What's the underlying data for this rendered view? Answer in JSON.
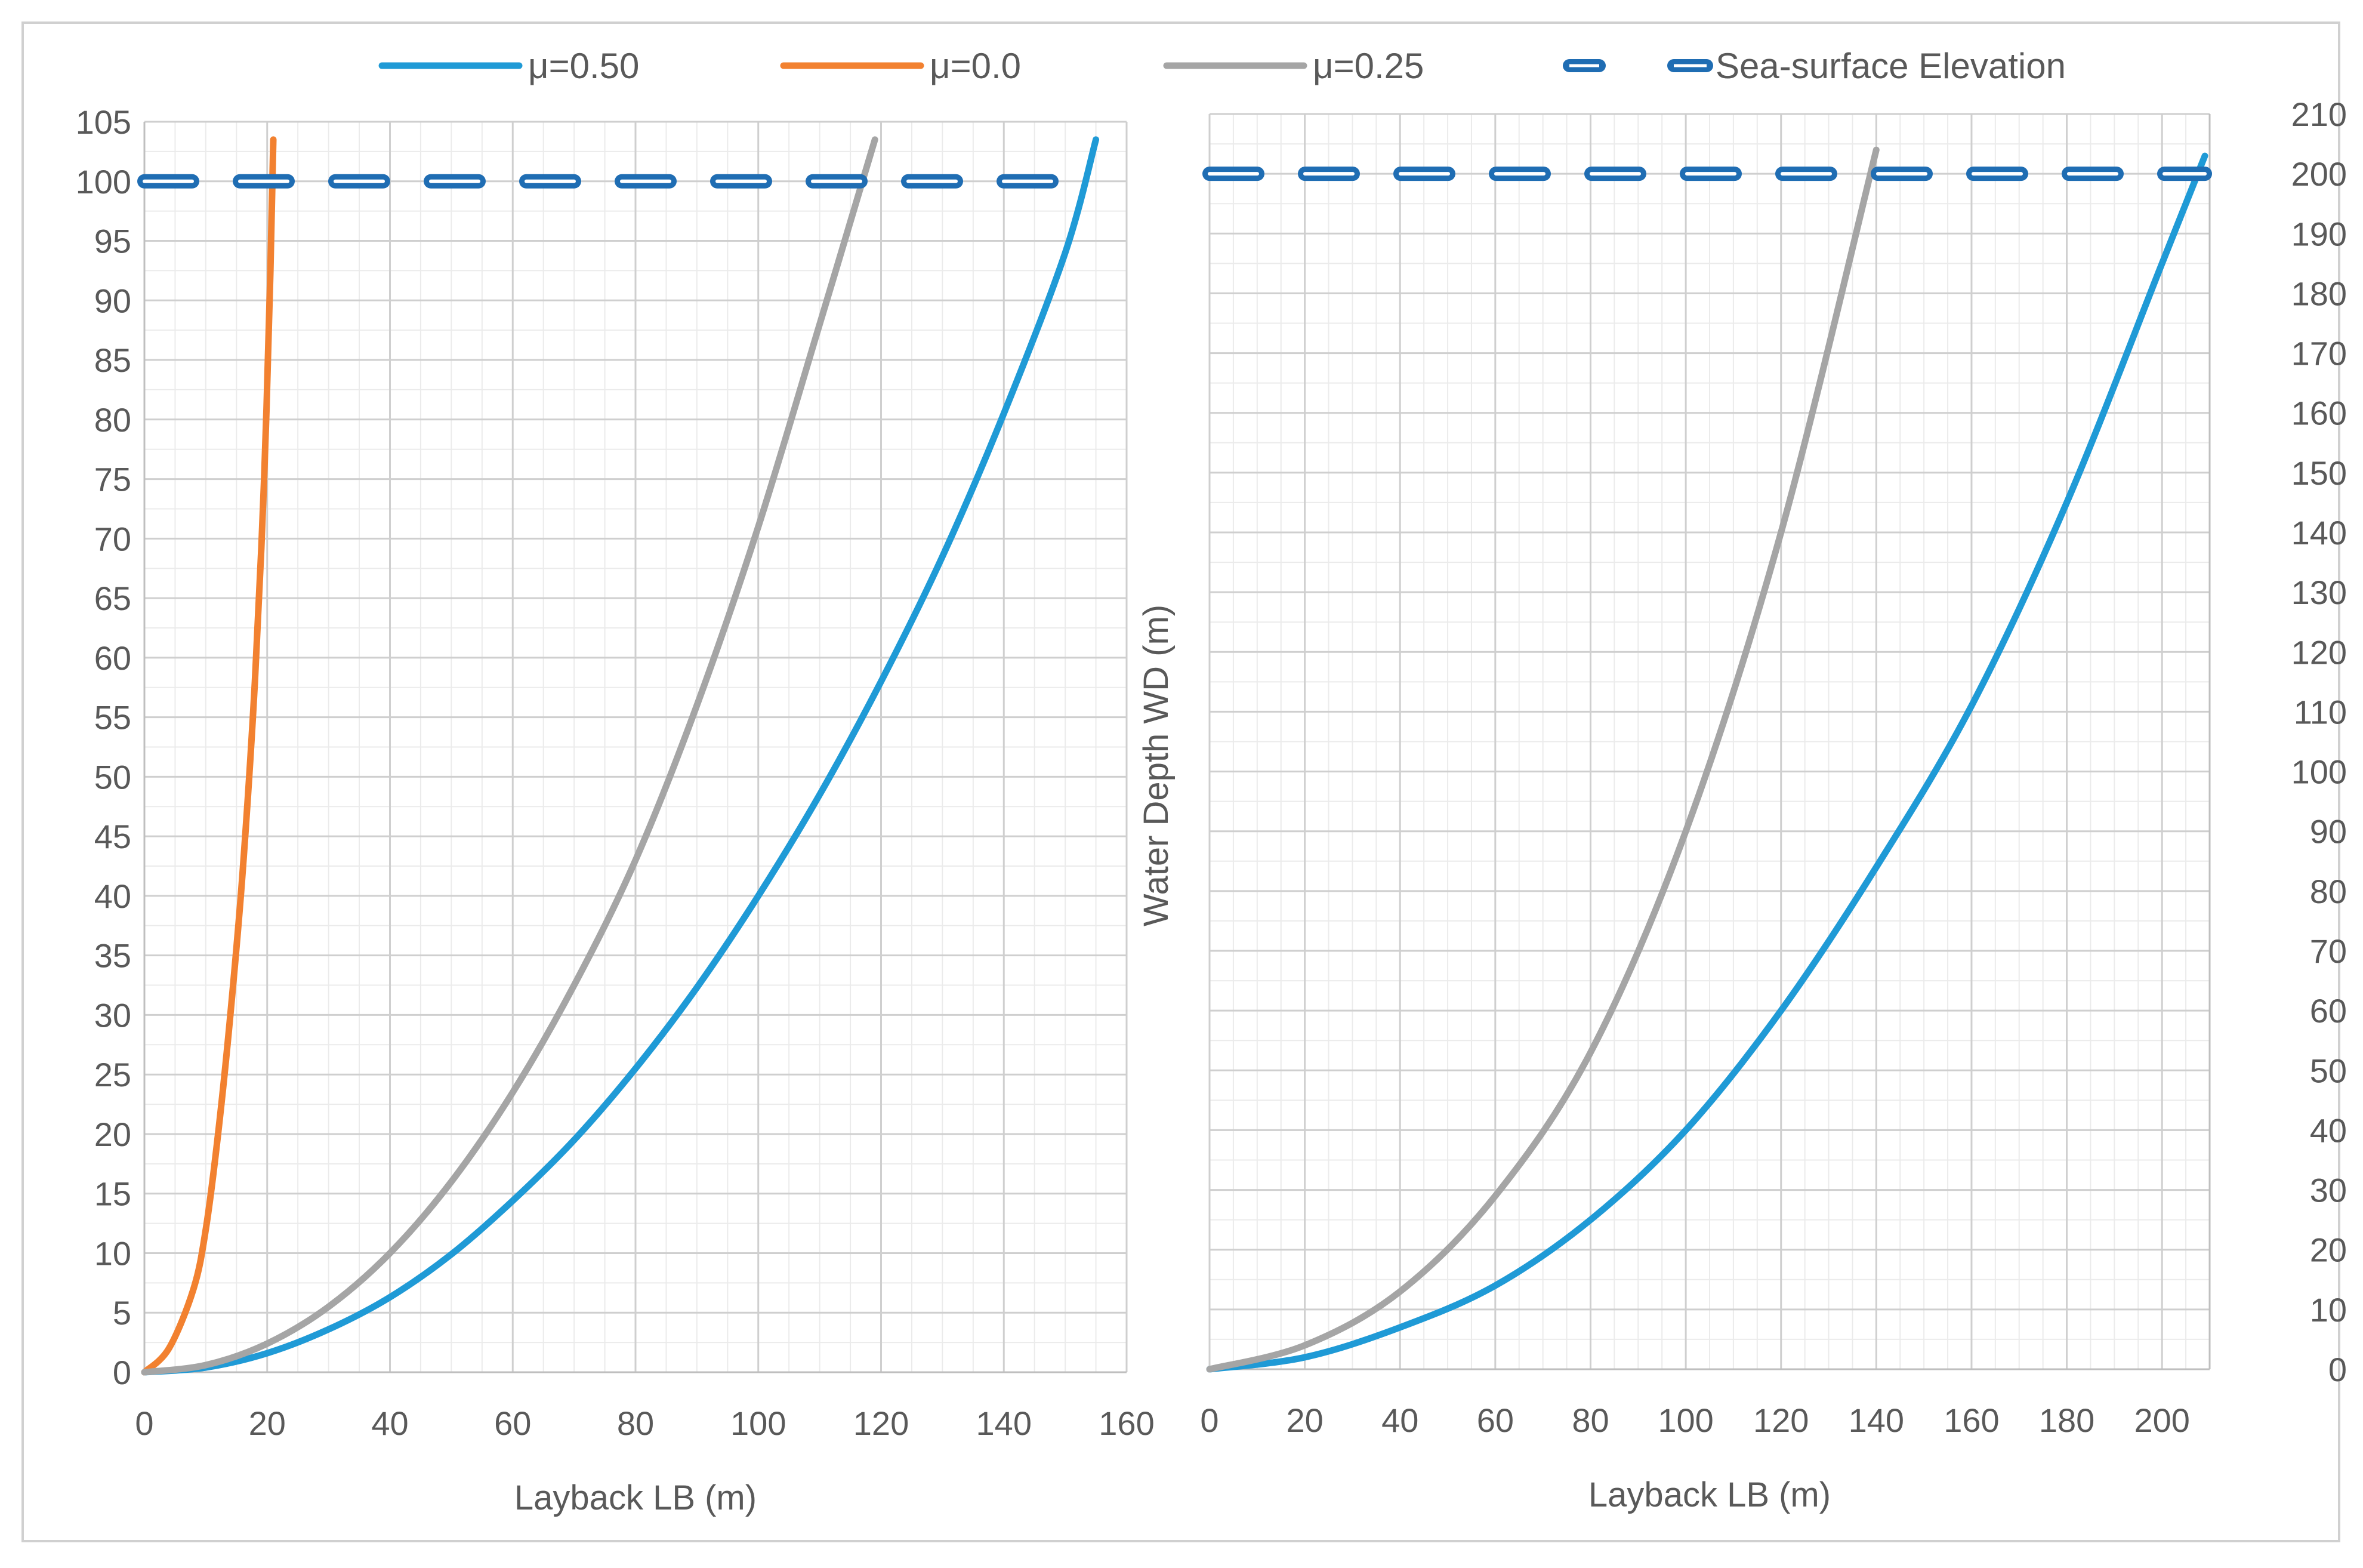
{
  "colors": {
    "mu050": "#1f9ad6",
    "mu00": "#f28130",
    "mu025": "#a5a5a5",
    "sea": "#1f6db3",
    "grid_major": "#cfcfcf",
    "grid_minor": "#ebebeb",
    "text": "#595959"
  },
  "legend": [
    {
      "label": "μ=0.50",
      "key": "mu050",
      "style": "solid"
    },
    {
      "label": "μ=0.0",
      "key": "mu00",
      "style": "solid"
    },
    {
      "label": "μ=0.25",
      "key": "mu025",
      "style": "solid"
    },
    {
      "label": "Sea-surface Elevation",
      "key": "sea",
      "style": "dashed"
    }
  ],
  "chart_data": [
    {
      "type": "line",
      "xlabel": "Layback LB (m)",
      "ylabel": "",
      "xlim": [
        0,
        160
      ],
      "ylim": [
        0,
        105
      ],
      "xticks": [
        0,
        20,
        40,
        60,
        80,
        100,
        120,
        140,
        160
      ],
      "yticks": [
        0,
        5,
        10,
        15,
        20,
        25,
        30,
        35,
        40,
        45,
        50,
        55,
        60,
        65,
        70,
        75,
        80,
        85,
        90,
        95,
        100,
        105
      ],
      "y_axis_side": "left",
      "grid": true,
      "series": [
        {
          "name": "μ=0.50",
          "key": "mu050",
          "x": [
            0,
            10,
            20,
            30,
            40,
            50,
            60,
            70,
            80,
            90,
            100,
            110,
            120,
            130,
            140,
            150,
            155
          ],
          "y": [
            0,
            0.4,
            1.6,
            3.6,
            6.3,
            9.9,
            14.4,
            19.5,
            25.5,
            32.3,
            40,
            48.5,
            58,
            68.5,
            80.5,
            94,
            103.5
          ]
        },
        {
          "name": "μ=0.0",
          "key": "mu00",
          "x": [
            0,
            4,
            8,
            10,
            12,
            14,
            16,
            18,
            19.5,
            20.5,
            21
          ],
          "y": [
            0,
            2,
            7,
            12,
            20,
            30,
            42,
            58,
            75,
            92,
            103.5
          ]
        },
        {
          "name": "μ=0.25",
          "key": "mu025",
          "x": [
            0,
            10,
            20,
            30,
            40,
            50,
            60,
            70,
            80,
            90,
            100,
            110,
            119
          ],
          "y": [
            0,
            0.6,
            2.4,
            5.5,
            10,
            16,
            23.5,
            32.5,
            43,
            56,
            71,
            88,
            103.5
          ]
        },
        {
          "name": "Sea-surface Elevation",
          "key": "sea",
          "x": [
            0,
            155
          ],
          "y": [
            100,
            100
          ]
        }
      ]
    },
    {
      "type": "line",
      "xlabel": "Layback LB (m)",
      "ylabel": "Water Depth WD (m)",
      "xlim": [
        0,
        210
      ],
      "ylim": [
        0,
        210
      ],
      "xticks": [
        0,
        20,
        40,
        60,
        80,
        100,
        120,
        140,
        160,
        180,
        200
      ],
      "yticks": [
        0,
        10,
        20,
        30,
        40,
        50,
        60,
        70,
        80,
        90,
        100,
        110,
        120,
        130,
        140,
        150,
        160,
        170,
        180,
        190,
        200,
        210
      ],
      "y_axis_side": "right",
      "grid": true,
      "series": [
        {
          "name": "μ=0.50",
          "key": "mu050",
          "x": [
            0,
            20,
            40,
            60,
            80,
            100,
            120,
            140,
            160,
            180,
            200,
            209
          ],
          "y": [
            0,
            2,
            7,
            14,
            25,
            40,
            60,
            84,
            111,
            145,
            185,
            203
          ]
        },
        {
          "name": "μ=0.25",
          "key": "mu025",
          "x": [
            0,
            20,
            40,
            60,
            80,
            100,
            120,
            140
          ],
          "y": [
            0,
            4,
            13,
            29,
            53,
            90,
            140,
            204
          ]
        },
        {
          "name": "Sea-surface Elevation",
          "key": "sea",
          "x": [
            0,
            209
          ],
          "y": [
            200,
            200
          ]
        }
      ]
    }
  ]
}
